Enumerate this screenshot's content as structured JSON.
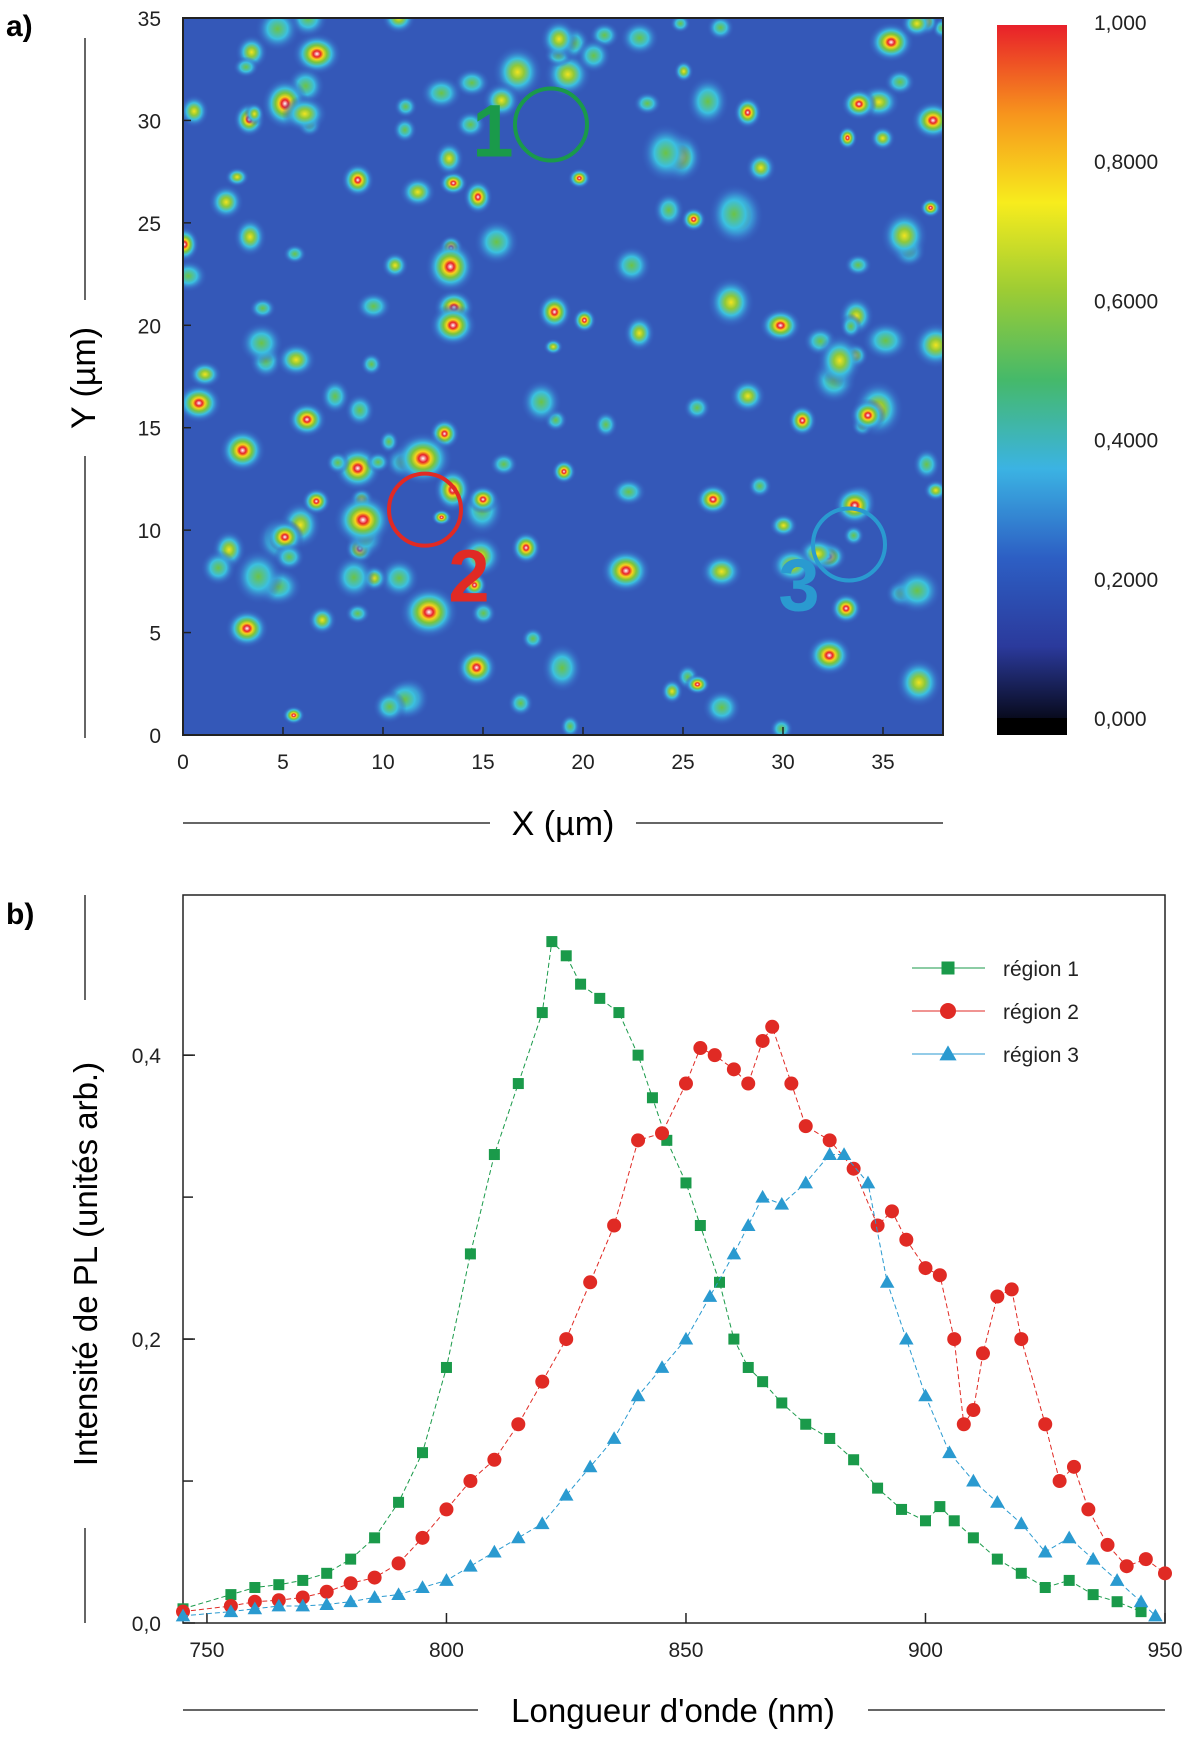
{
  "panel_a": {
    "label": "a)",
    "colorbar_labels": [
      "1,000",
      "0,8000",
      "0,6000",
      "0,4000",
      "0,2000",
      "0,000"
    ],
    "colorbar_stops": [
      "#000000",
      "#2b3a9c",
      "#2d5fc4",
      "#3bb3e3",
      "#45b96a",
      "#9ccc34",
      "#f7ec1d",
      "#f7941d",
      "#e8202a"
    ],
    "circles": [
      {
        "label": "1",
        "color": "#1a9a4a"
      },
      {
        "label": "2",
        "color": "#e02a24"
      },
      {
        "label": "3",
        "color": "#2a9ad0"
      }
    ]
  },
  "panel_b": {
    "label": "b)"
  },
  "chart_data": [
    {
      "type": "heatmap",
      "title": "",
      "xlabel": "X (µm)",
      "ylabel": "Y (µm)",
      "xlim": [
        0,
        38
      ],
      "ylim": [
        0,
        35
      ],
      "xticks": [
        0,
        5,
        10,
        15,
        20,
        25,
        30,
        35
      ],
      "yticks": [
        0,
        5,
        10,
        15,
        20,
        25,
        30,
        35
      ],
      "colorbar_range": [
        0,
        1
      ],
      "regions": [
        {
          "label": "1",
          "x": 18.4,
          "y": 29.8,
          "radius_um": 1.8
        },
        {
          "label": "2",
          "x": 12.1,
          "y": 11.0,
          "radius_um": 1.8
        },
        {
          "label": "3",
          "x": 33.3,
          "y": 9.3,
          "radius_um": 1.8
        }
      ]
    },
    {
      "type": "scatter",
      "title": "",
      "xlabel": "Longueur d'onde (nm)",
      "ylabel": "Intensité de PL (unités arb.)",
      "xlim": [
        745,
        950
      ],
      "ylim": [
        0,
        0.5
      ],
      "xticks": [
        750,
        800,
        850,
        900,
        950
      ],
      "xtick_labels": [
        "750",
        "800",
        "850",
        "900",
        "950"
      ],
      "yticks": [
        0,
        0.2,
        0.4
      ],
      "ytick_labels": [
        "0,0",
        "0,2",
        "0,4"
      ],
      "legend_position": "top-right",
      "series": [
        {
          "name": "région 1",
          "color": "#1a9a4a",
          "marker": "square",
          "points": [
            [
              745,
              0.01
            ],
            [
              755,
              0.02
            ],
            [
              760,
              0.025
            ],
            [
              765,
              0.027
            ],
            [
              770,
              0.03
            ],
            [
              775,
              0.035
            ],
            [
              780,
              0.045
            ],
            [
              785,
              0.06
            ],
            [
              790,
              0.085
            ],
            [
              795,
              0.12
            ],
            [
              800,
              0.18
            ],
            [
              805,
              0.26
            ],
            [
              810,
              0.33
            ],
            [
              815,
              0.38
            ],
            [
              820,
              0.43
            ],
            [
              822,
              0.48
            ],
            [
              825,
              0.47
            ],
            [
              828,
              0.45
            ],
            [
              832,
              0.44
            ],
            [
              836,
              0.43
            ],
            [
              840,
              0.4
            ],
            [
              843,
              0.37
            ],
            [
              846,
              0.34
            ],
            [
              850,
              0.31
            ],
            [
              853,
              0.28
            ],
            [
              857,
              0.24
            ],
            [
              860,
              0.2
            ],
            [
              863,
              0.18
            ],
            [
              866,
              0.17
            ],
            [
              870,
              0.155
            ],
            [
              875,
              0.14
            ],
            [
              880,
              0.13
            ],
            [
              885,
              0.115
            ],
            [
              890,
              0.095
            ],
            [
              895,
              0.08
            ],
            [
              900,
              0.072
            ],
            [
              903,
              0.082
            ],
            [
              906,
              0.072
            ],
            [
              910,
              0.06
            ],
            [
              915,
              0.045
            ],
            [
              920,
              0.035
            ],
            [
              925,
              0.025
            ],
            [
              930,
              0.03
            ],
            [
              935,
              0.02
            ],
            [
              940,
              0.015
            ],
            [
              945,
              0.008
            ]
          ]
        },
        {
          "name": "région 2",
          "color": "#e02a24",
          "marker": "circle",
          "points": [
            [
              745,
              0.008
            ],
            [
              755,
              0.012
            ],
            [
              760,
              0.015
            ],
            [
              765,
              0.016
            ],
            [
              770,
              0.018
            ],
            [
              775,
              0.022
            ],
            [
              780,
              0.028
            ],
            [
              785,
              0.032
            ],
            [
              790,
              0.042
            ],
            [
              795,
              0.06
            ],
            [
              800,
              0.08
            ],
            [
              805,
              0.1
            ],
            [
              810,
              0.115
            ],
            [
              815,
              0.14
            ],
            [
              820,
              0.17
            ],
            [
              825,
              0.2
            ],
            [
              830,
              0.24
            ],
            [
              835,
              0.28
            ],
            [
              840,
              0.34
            ],
            [
              845,
              0.345
            ],
            [
              850,
              0.38
            ],
            [
              853,
              0.405
            ],
            [
              856,
              0.4
            ],
            [
              860,
              0.39
            ],
            [
              863,
              0.38
            ],
            [
              866,
              0.41
            ],
            [
              868,
              0.42
            ],
            [
              872,
              0.38
            ],
            [
              875,
              0.35
            ],
            [
              880,
              0.34
            ],
            [
              885,
              0.32
            ],
            [
              890,
              0.28
            ],
            [
              893,
              0.29
            ],
            [
              896,
              0.27
            ],
            [
              900,
              0.25
            ],
            [
              903,
              0.245
            ],
            [
              906,
              0.2
            ],
            [
              908,
              0.14
            ],
            [
              910,
              0.15
            ],
            [
              912,
              0.19
            ],
            [
              915,
              0.23
            ],
            [
              918,
              0.235
            ],
            [
              920,
              0.2
            ],
            [
              925,
              0.14
            ],
            [
              928,
              0.1
            ],
            [
              931,
              0.11
            ],
            [
              934,
              0.08
            ],
            [
              938,
              0.055
            ],
            [
              942,
              0.04
            ],
            [
              946,
              0.045
            ],
            [
              950,
              0.035
            ]
          ]
        },
        {
          "name": "région 3",
          "color": "#2a9ad0",
          "marker": "triangle",
          "points": [
            [
              745,
              0.005
            ],
            [
              755,
              0.008
            ],
            [
              760,
              0.01
            ],
            [
              765,
              0.012
            ],
            [
              770,
              0.012
            ],
            [
              775,
              0.013
            ],
            [
              780,
              0.015
            ],
            [
              785,
              0.018
            ],
            [
              790,
              0.02
            ],
            [
              795,
              0.025
            ],
            [
              800,
              0.03
            ],
            [
              805,
              0.04
            ],
            [
              810,
              0.05
            ],
            [
              815,
              0.06
            ],
            [
              820,
              0.07
            ],
            [
              825,
              0.09
            ],
            [
              830,
              0.11
            ],
            [
              835,
              0.13
            ],
            [
              840,
              0.16
            ],
            [
              845,
              0.18
            ],
            [
              850,
              0.2
            ],
            [
              855,
              0.23
            ],
            [
              860,
              0.26
            ],
            [
              863,
              0.28
            ],
            [
              866,
              0.3
            ],
            [
              870,
              0.295
            ],
            [
              875,
              0.31
            ],
            [
              880,
              0.33
            ],
            [
              883,
              0.33
            ],
            [
              888,
              0.31
            ],
            [
              892,
              0.24
            ],
            [
              896,
              0.2
            ],
            [
              900,
              0.16
            ],
            [
              905,
              0.12
            ],
            [
              910,
              0.1
            ],
            [
              915,
              0.085
            ],
            [
              920,
              0.07
            ],
            [
              925,
              0.05
            ],
            [
              930,
              0.06
            ],
            [
              935,
              0.045
            ],
            [
              940,
              0.03
            ],
            [
              945,
              0.015
            ],
            [
              948,
              0.005
            ]
          ]
        }
      ]
    }
  ]
}
